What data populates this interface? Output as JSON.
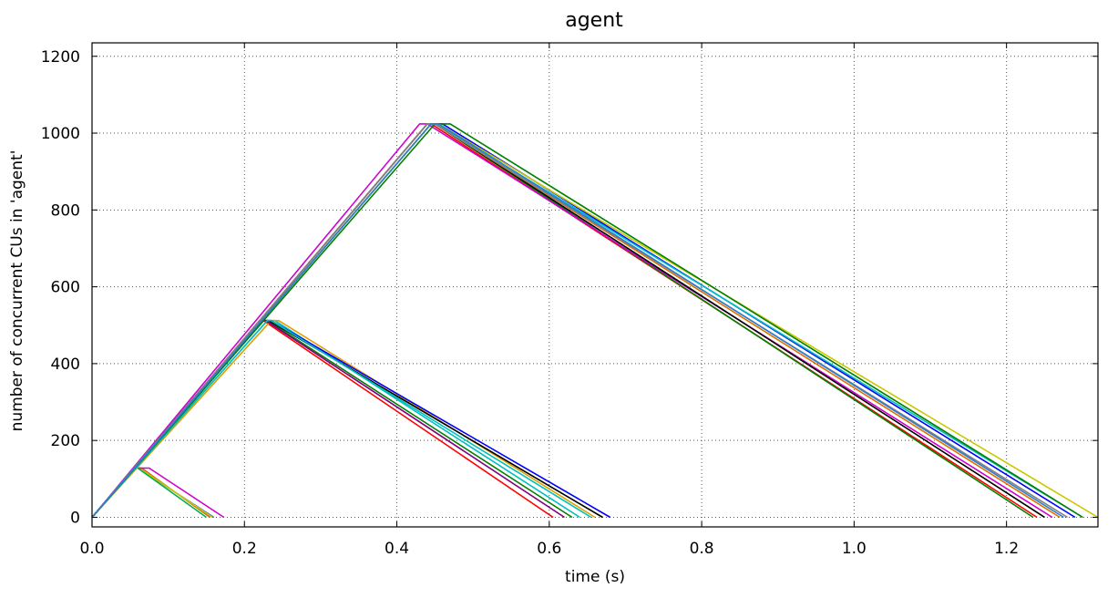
{
  "chart_data": {
    "type": "line",
    "title": "agent",
    "xlabel": "time (s)",
    "ylabel": "number of concurrent CUs in 'agent'",
    "xlim": [
      0,
      1.32
    ],
    "ylim": [
      -25,
      1235
    ],
    "xticks": [
      0.0,
      0.2,
      0.4,
      0.6,
      0.8,
      1.0,
      1.2
    ],
    "xtick_labels": [
      "0.0",
      "0.2",
      "0.4",
      "0.6",
      "0.8",
      "1.0",
      "1.2"
    ],
    "yticks": [
      0,
      200,
      400,
      600,
      800,
      1000,
      1200
    ],
    "ytick_labels": [
      "0",
      "200",
      "400",
      "600",
      "800",
      "1000",
      "1200"
    ],
    "grid": true,
    "series": [
      {
        "color": "#d45a1e",
        "x": [
          0.0,
          0.055,
          0.065,
          0.155
        ],
        "y": [
          0,
          128,
          128,
          0
        ]
      },
      {
        "color": "#2a7fd4",
        "x": [
          0.0,
          0.055,
          0.06,
          0.16
        ],
        "y": [
          0,
          128,
          128,
          0
        ]
      },
      {
        "color": "#c8c800",
        "x": [
          0.0,
          0.055,
          0.062,
          0.158
        ],
        "y": [
          0,
          128,
          128,
          0
        ]
      },
      {
        "color": "#d000d0",
        "x": [
          0.0,
          0.055,
          0.075,
          0.173
        ],
        "y": [
          0,
          128,
          128,
          0
        ]
      },
      {
        "color": "#00b050",
        "x": [
          0.0,
          0.055,
          0.06,
          0.15
        ],
        "y": [
          0,
          128,
          128,
          0
        ]
      },
      {
        "color": "#ff0000",
        "x": [
          0.0,
          0.22,
          0.225,
          0.605
        ],
        "y": [
          0,
          512,
          512,
          0
        ]
      },
      {
        "color": "#00bfbf",
        "x": [
          0.0,
          0.23,
          0.24,
          0.64
        ],
        "y": [
          0,
          512,
          512,
          0
        ]
      },
      {
        "color": "#e0a000",
        "x": [
          0.0,
          0.235,
          0.245,
          0.66
        ],
        "y": [
          0,
          512,
          512,
          0
        ]
      },
      {
        "color": "#0000ff",
        "x": [
          0.0,
          0.225,
          0.235,
          0.68
        ],
        "y": [
          0,
          512,
          512,
          0
        ]
      },
      {
        "color": "#008000",
        "x": [
          0.0,
          0.222,
          0.23,
          0.63
        ],
        "y": [
          0,
          512,
          512,
          0
        ]
      },
      {
        "color": "#000000",
        "x": [
          0.0,
          0.225,
          0.232,
          0.67
        ],
        "y": [
          0,
          512,
          512,
          0
        ]
      },
      {
        "color": "#800080",
        "x": [
          0.0,
          0.22,
          0.228,
          0.62
        ],
        "y": [
          0,
          512,
          512,
          0
        ]
      },
      {
        "color": "#00bfbf",
        "x": [
          0.0,
          0.23,
          0.235,
          0.655
        ],
        "y": [
          0,
          512,
          512,
          0
        ]
      },
      {
        "color": "#ff0000",
        "x": [
          0.0,
          0.44,
          0.445,
          1.24
        ],
        "y": [
          0,
          1024,
          1024,
          0
        ]
      },
      {
        "color": "#008000",
        "x": [
          0.0,
          0.445,
          0.45,
          1.235
        ],
        "y": [
          0,
          1024,
          1024,
          0
        ]
      },
      {
        "color": "#d000d0",
        "x": [
          0.0,
          0.43,
          0.44,
          1.26
        ],
        "y": [
          0,
          1024,
          1024,
          0
        ]
      },
      {
        "color": "#000000",
        "x": [
          0.0,
          0.445,
          0.45,
          1.25
        ],
        "y": [
          0,
          1024,
          1024,
          0
        ]
      },
      {
        "color": "#0000ff",
        "x": [
          0.0,
          0.44,
          0.46,
          1.29
        ],
        "y": [
          0,
          1024,
          1024,
          0
        ]
      },
      {
        "color": "#c8c800",
        "x": [
          0.0,
          0.445,
          0.455,
          1.32
        ],
        "y": [
          0,
          1024,
          1024,
          0
        ]
      },
      {
        "color": "#00bfbf",
        "x": [
          0.0,
          0.44,
          0.452,
          1.3
        ],
        "y": [
          0,
          1024,
          1024,
          0
        ]
      },
      {
        "color": "#008000",
        "x": [
          0.0,
          0.45,
          0.47,
          1.3
        ],
        "y": [
          0,
          1024,
          1024,
          0
        ]
      },
      {
        "color": "#e07000",
        "x": [
          0.0,
          0.44,
          0.45,
          1.27
        ],
        "y": [
          0,
          1024,
          1024,
          0
        ]
      },
      {
        "color": "#808080",
        "x": [
          0.0,
          0.44,
          0.45,
          1.28
        ],
        "y": [
          0,
          1024,
          1024,
          0
        ]
      },
      {
        "color": "#2a7fd4",
        "x": [
          0.0,
          0.445,
          0.455,
          1.275
        ],
        "y": [
          0,
          1024,
          1024,
          0
        ]
      }
    ]
  }
}
